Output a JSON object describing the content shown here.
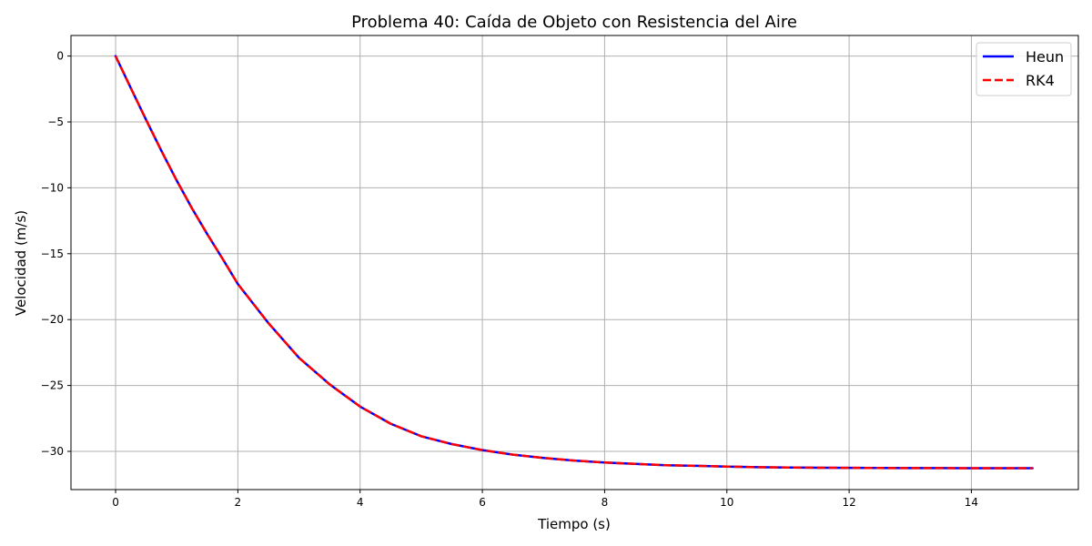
{
  "chart_data": {
    "type": "line",
    "title": "Problema 40: Caída de Objeto con Resistencia del Aire",
    "xlabel": "Tiempo (s)",
    "ylabel": "Velocidad (m/s)",
    "xlim": [
      -0.73,
      15.75
    ],
    "ylim": [
      -32.9,
      1.56
    ],
    "xticks": [
      0,
      2,
      4,
      6,
      8,
      10,
      12,
      14
    ],
    "xtick_labels": [
      "0",
      "2",
      "4",
      "6",
      "8",
      "10",
      "12",
      "14"
    ],
    "yticks": [
      0,
      -5,
      -10,
      -15,
      -20,
      -25,
      -30
    ],
    "ytick_labels": [
      "0",
      "−5",
      "−10",
      "−15",
      "−20",
      "−25",
      "−30"
    ],
    "grid": true,
    "legend_position": "top-right",
    "x": [
      0,
      0.25,
      0.5,
      0.75,
      1,
      1.25,
      1.5,
      1.75,
      2,
      2.5,
      3,
      3.5,
      4,
      4.5,
      5,
      5.5,
      6,
      6.5,
      7,
      7.5,
      8,
      8.5,
      9,
      9.5,
      10,
      10.5,
      11,
      11.5,
      12,
      12.5,
      13,
      13.5,
      14,
      14.5,
      15
    ],
    "series": [
      {
        "name": "Heun",
        "color": "#0000ff",
        "style": "solid",
        "values": [
          0,
          -2.44,
          -4.85,
          -7.2,
          -9.45,
          -11.56,
          -13.52,
          -15.39,
          -17.3,
          -20.27,
          -22.9,
          -24.9,
          -26.6,
          -27.9,
          -28.85,
          -29.45,
          -29.9,
          -30.25,
          -30.5,
          -30.7,
          -30.85,
          -30.95,
          -31.05,
          -31.1,
          -31.15,
          -31.2,
          -31.22,
          -31.24,
          -31.25,
          -31.26,
          -31.27,
          -31.27,
          -31.28,
          -31.28,
          -31.28
        ]
      },
      {
        "name": "RK4",
        "color": "#ff0000",
        "style": "dashed",
        "values": [
          0,
          -2.44,
          -4.85,
          -7.2,
          -9.45,
          -11.56,
          -13.52,
          -15.39,
          -17.3,
          -20.27,
          -22.9,
          -24.9,
          -26.6,
          -27.9,
          -28.85,
          -29.45,
          -29.9,
          -30.25,
          -30.5,
          -30.7,
          -30.85,
          -30.95,
          -31.05,
          -31.1,
          -31.15,
          -31.2,
          -31.22,
          -31.24,
          -31.25,
          -31.26,
          -31.27,
          -31.27,
          -31.28,
          -31.28,
          -31.28
        ]
      }
    ]
  }
}
